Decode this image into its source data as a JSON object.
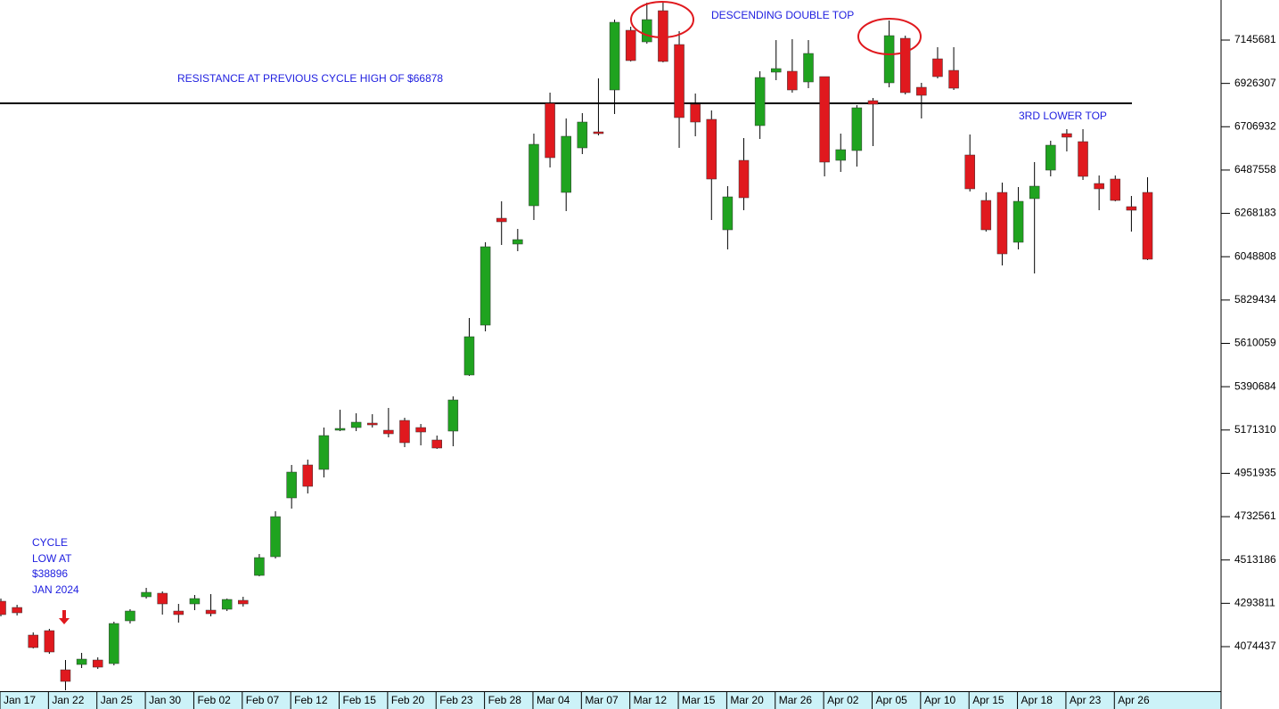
{
  "chart_data": {
    "type": "candlestick",
    "categories": [
      "Jan 17",
      null,
      null,
      "Jan 22",
      null,
      null,
      "Jan 25",
      null,
      null,
      "Jan 30",
      null,
      null,
      "Feb 02",
      null,
      null,
      "Feb 07",
      null,
      null,
      "Feb 12",
      null,
      null,
      "Feb 15",
      null,
      null,
      "Feb 20",
      null,
      null,
      "Feb 23",
      null,
      null,
      "Feb 28",
      null,
      null,
      "Mar 04",
      null,
      null,
      "Mar 07",
      null,
      null,
      "Mar 12",
      null,
      null,
      "Mar 15",
      null,
      null,
      "Mar 20",
      null,
      null,
      "Mar 26",
      null,
      null,
      "Apr 02",
      null,
      null,
      "Apr 05",
      null,
      null,
      "Apr 10",
      null,
      null,
      "Apr 15",
      null,
      null,
      "Apr 18",
      null,
      null,
      "Apr 23",
      null,
      null,
      "Apr 26",
      null,
      null
    ],
    "open": [
      4304300,
      4272800,
      4133000,
      4155500,
      3957100,
      3984100,
      4006700,
      3988700,
      4205100,
      4326900,
      4344900,
      4254700,
      4290800,
      4259200,
      4263800,
      4308900,
      4435100,
      4529800,
      4827500,
      4994400,
      4971800,
      5170300,
      5183800,
      5206300,
      5170300,
      5219900,
      5183800,
      5120700,
      5165800,
      5449900,
      5702400,
      6243600,
      6112900,
      6306800,
      6825400,
      6374400,
      6599900,
      6681100,
      6893100,
      7195300,
      7136600,
      7294500,
      7123100,
      6820900,
      6744300,
      6185000,
      6536800,
      6712700,
      6983300,
      6987800,
      6933700,
      6960700,
      6536800,
      6586400,
      6839000,
      6929200,
      7154700,
      6906600,
      7050900,
      6992300,
      6563900,
      6333800,
      6374400,
      6121900,
      6342900,
      6487200,
      6672100,
      6631500,
      6419500,
      6442100,
      6302300,
      6374400
    ],
    "high": [
      4317900,
      4286300,
      4146500,
      4164500,
      4006700,
      4042800,
      4020200,
      4200600,
      4263800,
      4372000,
      4354000,
      4290800,
      4335900,
      4340400,
      4317900,
      4326900,
      4543400,
      4759900,
      4994400,
      5021400,
      5183800,
      5274000,
      5256000,
      5251400,
      5283000,
      5233400,
      5201800,
      5143200,
      5341600,
      5738500,
      6121900,
      6329300,
      6189500,
      6672100,
      6879600,
      6748800,
      6775800,
      6951700,
      7249400,
      7213300,
      7335100,
      7335100,
      7190700,
      6875000,
      6789400,
      6406000,
      6649500,
      6987800,
      7145600,
      7150200,
      7145600,
      6960700,
      6672100,
      6816400,
      6852500,
      7244900,
      7168200,
      6929200,
      7109600,
      7109600,
      6667600,
      6374400,
      6424000,
      6401500,
      6527800,
      6636000,
      6694600,
      6694600,
      6460100,
      6460100,
      6356400,
      6451100
    ],
    "low": [
      4227700,
      4232200,
      4065300,
      4038300,
      3853300,
      3966100,
      3961600,
      3979600,
      4191600,
      4317900,
      4236700,
      4196100,
      4259200,
      4227700,
      4254700,
      4277300,
      4430600,
      4520800,
      4773400,
      4850100,
      4931200,
      5165800,
      5165800,
      5183800,
      5134200,
      5084600,
      5093600,
      5075600,
      5089100,
      5445400,
      5670900,
      6108300,
      6076800,
      6234600,
      6500700,
      6279700,
      6568400,
      6663100,
      6771300,
      7037400,
      7127600,
      7032900,
      6599900,
      6658600,
      6234600,
      6085800,
      6284200,
      6645000,
      6942700,
      6879600,
      6902100,
      6455600,
      6478200,
      6505200,
      6609000,
      6906600,
      6870500,
      6748800,
      6951700,
      6893100,
      6378900,
      6176000,
      6004600,
      6085800,
      5964000,
      6455600,
      6581900,
      6437600,
      6284200,
      6329300,
      6176000,
      6031700
    ],
    "close": [
      4236700,
      4245700,
      4069800,
      4047300,
      3898400,
      4011200,
      3970600,
      4191600,
      4254700,
      4349400,
      4290800,
      4236700,
      4317900,
      4241200,
      4313400,
      4290800,
      4525300,
      4732800,
      4958300,
      4886100,
      5143200,
      5179300,
      5210900,
      5197300,
      5152200,
      5107100,
      5161200,
      5080100,
      5323600,
      5643800,
      6099300,
      6225600,
      6135400,
      6618000,
      6550300,
      6658600,
      6730700,
      6672100,
      7235800,
      7041900,
      7249400,
      7037400,
      6753300,
      6730700,
      6442100,
      6351900,
      6347400,
      6956200,
      7001300,
      6893100,
      7078000,
      6527800,
      6590900,
      6802900,
      6820900,
      7168200,
      6879600,
      6866000,
      6960700,
      6902100,
      6392500,
      6185000,
      6063200,
      6329300,
      6406000,
      6613500,
      6654100,
      6455600,
      6392500,
      6333800,
      6284200,
      6036200
    ],
    "up_color": "#1fa31f",
    "down_color": "#e0191e",
    "ylim": [
      3853381,
      7348631
    ],
    "yticks": [
      7145681,
      6926307,
      6706932,
      6487558,
      6268183,
      6048808,
      5829434,
      5610059,
      5390684,
      5171310,
      4951935,
      4732561,
      4513186,
      4293811,
      4074437
    ],
    "resistance_line": 6825400,
    "annotations": [
      "RESISTANCE AT PREVIOUS CYCLE HIGH OF $66878",
      "DESCENDING DOUBLE TOP",
      "3RD LOWER TOP"
    ],
    "cycle_note": [
      "CYCLE",
      "LOW AT",
      "$38896",
      "JAN 2024"
    ]
  }
}
